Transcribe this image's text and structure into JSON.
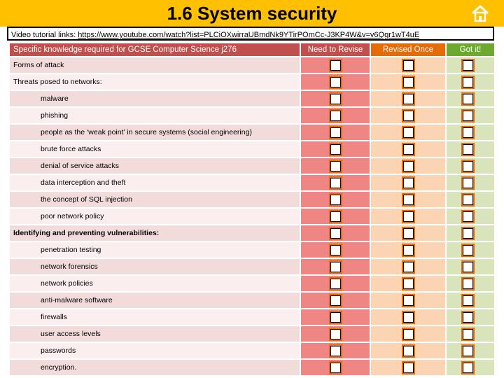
{
  "title": "1.6 System security",
  "home_icon": "home-icon",
  "link_bar": {
    "prefix": "Video tutorial links: ",
    "url": "https://www.youtube.com/watch?list=PLCiOXwirraUBmdNk9YTirPOmCc-J3KP4W&v=v6Qgr1wT4uE"
  },
  "headers": {
    "topic": "Specific knowledge required for GCSE Computer Science j276",
    "need": "Need to Revise",
    "revised": "Revised Once",
    "got": "Got it!"
  },
  "colors": {
    "title_bar": "#ffc000",
    "need": "#c0504d",
    "revised": "#e36c09",
    "got": "#6ea92f"
  },
  "rows": [
    {
      "label": "Forms of attack",
      "style": "heading",
      "checked": [
        false,
        false,
        false
      ]
    },
    {
      "label": "Threats posed to networks:",
      "style": "heading",
      "checked": [
        false,
        false,
        false
      ]
    },
    {
      "label": "malware",
      "style": "item",
      "checked": [
        false,
        false,
        false
      ]
    },
    {
      "label": "phishing",
      "style": "item",
      "checked": [
        false,
        false,
        false
      ]
    },
    {
      "label": "people as the ‘weak point’ in secure systems (social engineering)",
      "style": "item",
      "checked": [
        false,
        false,
        false
      ]
    },
    {
      "label": "brute force attacks",
      "style": "item",
      "checked": [
        false,
        false,
        false
      ]
    },
    {
      "label": "denial of service attacks",
      "style": "item",
      "checked": [
        false,
        false,
        false
      ]
    },
    {
      "label": "data interception and theft",
      "style": "item",
      "checked": [
        false,
        false,
        false
      ]
    },
    {
      "label": "the concept of SQL injection",
      "style": "item",
      "checked": [
        false,
        false,
        false
      ]
    },
    {
      "label": "poor network policy",
      "style": "item",
      "checked": [
        false,
        false,
        false
      ]
    },
    {
      "label": "Identifying and preventing vulnerabilities:",
      "style": "bold",
      "checked": [
        false,
        false,
        false
      ]
    },
    {
      "label": "penetration testing",
      "style": "item",
      "checked": [
        false,
        false,
        false
      ]
    },
    {
      "label": "network forensics",
      "style": "item",
      "checked": [
        false,
        false,
        false
      ]
    },
    {
      "label": "network policies",
      "style": "item",
      "checked": [
        false,
        false,
        false
      ]
    },
    {
      "label": "anti-malware software",
      "style": "item",
      "checked": [
        false,
        false,
        false
      ]
    },
    {
      "label": "firewalls",
      "style": "item",
      "checked": [
        false,
        false,
        false
      ]
    },
    {
      "label": "user access levels",
      "style": "item",
      "checked": [
        false,
        false,
        false
      ]
    },
    {
      "label": "passwords",
      "style": "item",
      "checked": [
        false,
        false,
        false
      ]
    },
    {
      "label": "encryption.",
      "style": "item",
      "checked": [
        false,
        false,
        false
      ]
    }
  ]
}
